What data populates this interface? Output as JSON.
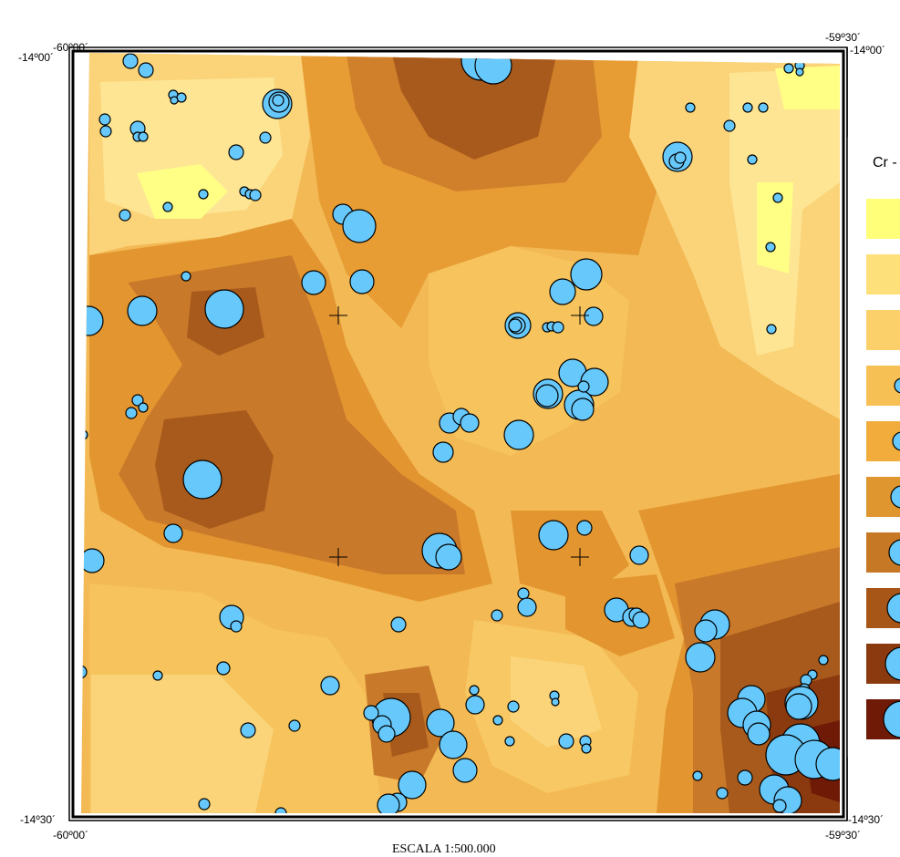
{
  "coords": {
    "top_left_lon": "-60º00´",
    "top_left_lat": "-14º00´",
    "top_right_lon": "-59º30´",
    "top_right_lat": "-14º00´",
    "bottom_left_lat": "-14º30´",
    "bottom_left_lon": "-60º00´",
    "bottom_right_lat": "-14º30´",
    "bottom_right_lon": "-59º30´"
  },
  "scale_label": "ESCALA 1:500.000",
  "legend": {
    "title": "Cr -",
    "class_colors": [
      "#ffff7a",
      "#fde07a",
      "#fbd06a",
      "#f7c055",
      "#f1ac3c",
      "#e0962f",
      "#c77824",
      "#a85617",
      "#8a3a0e",
      "#6e1a06"
    ]
  },
  "colors": {
    "background": "#f3bf5a",
    "sample_point": "#66c8fb"
  }
}
